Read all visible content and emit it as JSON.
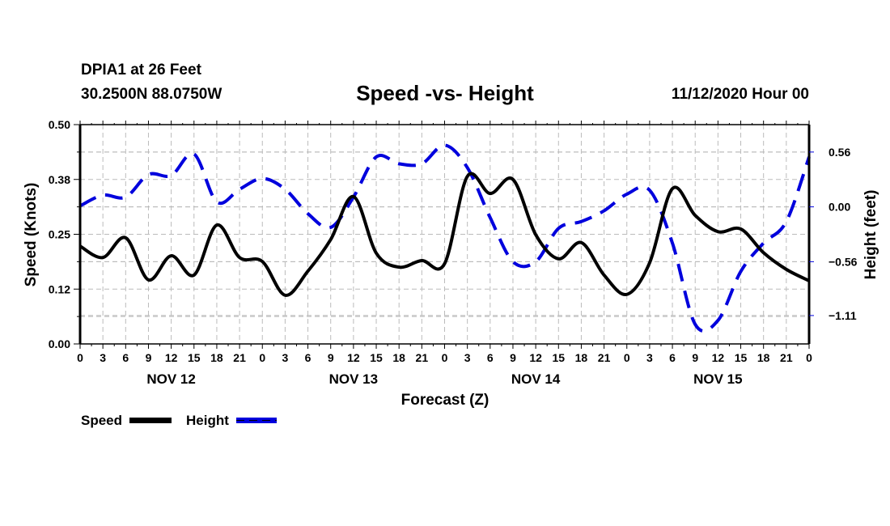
{
  "header": {
    "station": "DPIA1 at 26 Feet",
    "coordinates": "30.2500N 88.0750W",
    "title": "Speed -vs- Height",
    "run_info": "11/12/2020 Hour 00"
  },
  "chart_data": {
    "type": "line",
    "title": "Speed -vs- Height",
    "xlabel": "Forecast (Z)",
    "ylabel": "Speed (Knots)",
    "y2label": "Height (feet)",
    "x_unit": "hours since 11/12/2020 00Z",
    "xlim": [
      0,
      96
    ],
    "ylim": [
      0,
      0.5
    ],
    "y2lim": [
      -1.4,
      0.84
    ],
    "grid": true,
    "x_tick_labels": [
      "0",
      "3",
      "6",
      "9",
      "12",
      "15",
      "18",
      "21",
      "0",
      "3",
      "6",
      "9",
      "12",
      "15",
      "18",
      "21",
      "0",
      "3",
      "6",
      "9",
      "12",
      "15",
      "18",
      "21",
      "0",
      "3",
      "6",
      "9",
      "12",
      "15",
      "18",
      "21",
      "0"
    ],
    "date_labels": [
      {
        "label": "NOV 12",
        "hour": 12
      },
      {
        "label": "NOV 13",
        "hour": 36
      },
      {
        "label": "NOV 14",
        "hour": 60
      },
      {
        "label": "NOV 15",
        "hour": 84
      }
    ],
    "y_ticks": [
      {
        "label": "0.00",
        "value": 0.0
      },
      {
        "label": "0.12",
        "value": 0.125
      },
      {
        "label": "0.25",
        "value": 0.25
      },
      {
        "label": "0.38",
        "value": 0.375
      },
      {
        "label": "0.50",
        "value": 0.5
      }
    ],
    "y2_ticks": [
      {
        "label": "0.56",
        "value": 0.56
      },
      {
        "label": "0.00",
        "value": 0.0
      },
      {
        "label": "−0.56",
        "value": -0.56
      },
      {
        "label": "−1.11",
        "value": -1.11
      }
    ],
    "x": [
      0,
      3,
      6,
      9,
      12,
      15,
      18,
      21,
      24,
      27,
      30,
      33,
      36,
      39,
      42,
      45,
      48,
      51,
      54,
      57,
      60,
      63,
      66,
      69,
      72,
      75,
      78,
      81,
      84,
      87,
      90,
      93,
      96
    ],
    "series": [
      {
        "name": "Speed",
        "axis": "left",
        "color": "#000000",
        "style": "solid",
        "values": [
          0.223,
          0.197,
          0.242,
          0.146,
          0.201,
          0.157,
          0.271,
          0.197,
          0.188,
          0.111,
          0.166,
          0.238,
          0.336,
          0.207,
          0.175,
          0.19,
          0.183,
          0.382,
          0.343,
          0.375,
          0.249,
          0.194,
          0.231,
          0.157,
          0.113,
          0.185,
          0.354,
          0.293,
          0.256,
          0.262,
          0.208,
          0.17,
          0.144
        ]
      },
      {
        "name": "Height",
        "axis": "right",
        "color": "#0000dd",
        "style": "dashed",
        "values": [
          0.01,
          0.12,
          0.1,
          0.33,
          0.32,
          0.54,
          0.05,
          0.18,
          0.29,
          0.18,
          -0.07,
          -0.21,
          0.1,
          0.51,
          0.44,
          0.44,
          0.63,
          0.4,
          -0.11,
          -0.56,
          -0.56,
          -0.22,
          -0.15,
          -0.04,
          0.13,
          0.17,
          -0.37,
          -1.2,
          -1.16,
          -0.66,
          -0.37,
          -0.15,
          0.51
        ]
      }
    ],
    "legend": {
      "placement": "bottom-left",
      "entries": [
        {
          "label": "Speed",
          "color": "#000000",
          "style": "solid"
        },
        {
          "label": "Height",
          "color": "#0000dd",
          "style": "dashed"
        }
      ]
    }
  }
}
